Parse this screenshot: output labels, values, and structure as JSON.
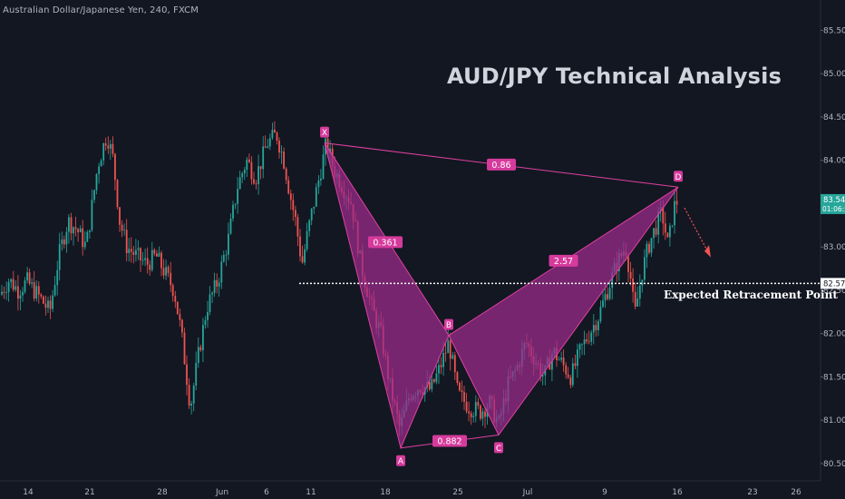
{
  "header": {
    "instrument": "Australian Dollar/Japanese Yen, 240, FXCM"
  },
  "chart_data": {
    "type": "candlestick",
    "title": "AUD/JPY Technical Analysis",
    "ylim": [
      80.3,
      85.85
    ],
    "y_ticks": [
      "80.500",
      "81.000",
      "81.500",
      "82.000",
      "82.500",
      "83.000",
      "83.500",
      "84.000",
      "84.500",
      "85.000",
      "85.500"
    ],
    "x_ticks": [
      "14",
      "21",
      "28",
      "Jun",
      "6",
      "11",
      "18",
      "25",
      "Jul",
      "9",
      "16",
      "23",
      "26"
    ],
    "price_path": [
      [
        0,
        82.45
      ],
      [
        10,
        82.62
      ],
      [
        20,
        82.5
      ],
      [
        30,
        82.6
      ],
      [
        45,
        82.4
      ],
      [
        55,
        82.25
      ],
      [
        65,
        82.9
      ],
      [
        75,
        83.3
      ],
      [
        85,
        83.2
      ],
      [
        95,
        83.0
      ],
      [
        108,
        83.95
      ],
      [
        118,
        84.3
      ],
      [
        125,
        84.0
      ],
      [
        132,
        83.3
      ],
      [
        140,
        83.0
      ],
      [
        150,
        82.9
      ],
      [
        162,
        82.8
      ],
      [
        172,
        82.9
      ],
      [
        182,
        82.7
      ],
      [
        192,
        82.5
      ],
      [
        200,
        82.0
      ],
      [
        210,
        81.15
      ],
      [
        218,
        81.7
      ],
      [
        228,
        82.3
      ],
      [
        240,
        82.6
      ],
      [
        252,
        83.1
      ],
      [
        262,
        83.7
      ],
      [
        272,
        84.0
      ],
      [
        282,
        83.8
      ],
      [
        295,
        84.2
      ],
      [
        305,
        84.3
      ],
      [
        313,
        84.0
      ],
      [
        320,
        83.6
      ],
      [
        326,
        83.3
      ],
      [
        333,
        82.8
      ],
      [
        340,
        83.2
      ],
      [
        350,
        83.7
      ],
      [
        360,
        84.2
      ],
      [
        368,
        83.9
      ],
      [
        378,
        83.7
      ],
      [
        388,
        83.5
      ],
      [
        398,
        82.8
      ],
      [
        410,
        82.3
      ],
      [
        420,
        82.0
      ],
      [
        430,
        81.4
      ],
      [
        441,
        80.9
      ],
      [
        452,
        81.3
      ],
      [
        463,
        81.4
      ],
      [
        475,
        81.35
      ],
      [
        485,
        81.6
      ],
      [
        495,
        81.9
      ],
      [
        505,
        81.3
      ],
      [
        518,
        81.15
      ],
      [
        530,
        81.1
      ],
      [
        540,
        81.2
      ],
      [
        550,
        80.95
      ],
      [
        560,
        81.4
      ],
      [
        570,
        81.6
      ],
      [
        580,
        81.9
      ],
      [
        590,
        81.7
      ],
      [
        600,
        81.5
      ],
      [
        610,
        81.8
      ],
      [
        620,
        81.65
      ],
      [
        630,
        81.5
      ],
      [
        640,
        81.8
      ],
      [
        650,
        82.0
      ],
      [
        660,
        82.2
      ],
      [
        670,
        82.5
      ],
      [
        680,
        82.8
      ],
      [
        690,
        83.0
      ],
      [
        695,
        82.7
      ],
      [
        700,
        82.2
      ],
      [
        708,
        82.7
      ],
      [
        715,
        83.0
      ],
      [
        722,
        83.2
      ],
      [
        730,
        83.4
      ],
      [
        737,
        83.0
      ],
      [
        743,
        83.45
      ],
      [
        748,
        83.55
      ]
    ],
    "current_price": "83.547",
    "countdown": "01:06:58",
    "expected_level": "82.579",
    "expected_label": "Expected Retracement Point",
    "pattern": {
      "points": [
        {
          "label": "X",
          "price": 84.2
        },
        {
          "label": "A",
          "price": 80.68
        },
        {
          "label": "B",
          "price": 81.98
        },
        {
          "label": "C",
          "price": 80.83
        },
        {
          "label": "D",
          "price": 83.69
        }
      ],
      "ratios": [
        {
          "label": "0.86"
        },
        {
          "label": "0.361"
        },
        {
          "label": "0.882"
        },
        {
          "label": "2.57"
        }
      ]
    },
    "colors": {
      "background": "#131722",
      "bull": "#26a69a",
      "bear": "#ef5350",
      "pattern_fill": "#9c2b8c",
      "pattern_line": "#e040a0",
      "label_bg": "#d63a9c",
      "price_tag": "#26a69a",
      "arrow": "#ef5350"
    }
  }
}
